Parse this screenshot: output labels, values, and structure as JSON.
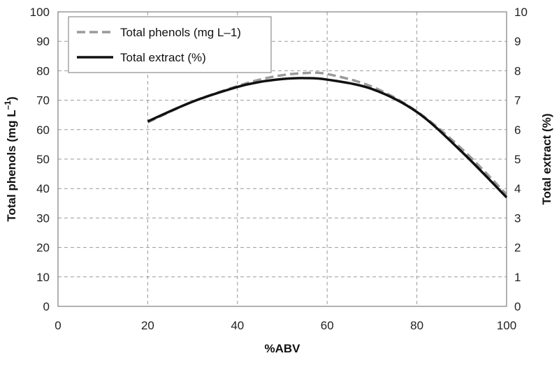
{
  "chart_data": {
    "type": "line",
    "xlabel": "%ABV",
    "ylabel_left": "Total phenols (mg L",
    "ylabel_left_sup": "–1",
    "ylabel_left_end": ")",
    "ylabel_right": "Total extract (%)",
    "xlim": [
      0,
      100
    ],
    "ylim_left": [
      0,
      100
    ],
    "ylim_right": [
      0,
      10
    ],
    "x_ticks": [
      0,
      20,
      40,
      60,
      80,
      100
    ],
    "y_ticks_left": [
      0,
      10,
      20,
      30,
      40,
      50,
      60,
      70,
      80,
      90,
      100
    ],
    "y_ticks_right": [
      0,
      1,
      2,
      3,
      4,
      5,
      6,
      7,
      8,
      9,
      10
    ],
    "grid": true,
    "legend_position": "top-left",
    "series": [
      {
        "name": "Total phenols (mg L–1)",
        "axis": "left",
        "style": "dashed",
        "color": "#9a9a9a",
        "x": [
          20,
          30,
          40,
          45,
          50,
          55,
          60,
          70,
          80,
          90,
          100
        ],
        "y": [
          62.5,
          69.5,
          74.8,
          77.0,
          78.5,
          79.2,
          78.9,
          74.6,
          66.2,
          53.5,
          38.0
        ]
      },
      {
        "name": "Total extract (%)",
        "axis": "right",
        "style": "solid",
        "color": "#111111",
        "x": [
          20,
          30,
          40,
          45,
          50,
          55,
          60,
          70,
          80,
          90,
          100
        ],
        "y": [
          6.28,
          6.95,
          7.45,
          7.62,
          7.72,
          7.75,
          7.7,
          7.38,
          6.6,
          5.25,
          3.7
        ]
      }
    ]
  }
}
